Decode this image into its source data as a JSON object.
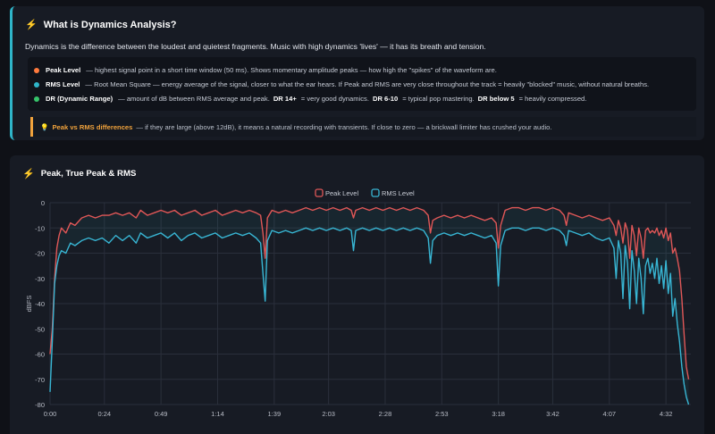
{
  "info": {
    "title": "What is Dynamics Analysis?",
    "intro": "Dynamics is the difference between the loudest and quietest fragments. Music with high dynamics 'lives' — it has its breath and tension.",
    "peak_term": "Peak Level",
    "peak_desc": "— highest signal point in a short time window (50 ms). Shows momentary amplitude peaks — how high the \"spikes\" of the waveform are.",
    "rms_term": "RMS Level",
    "rms_desc": "— Root Mean Square — energy average of the signal, closer to what the ear hears. If Peak and RMS are very close throughout the track = heavily \"blocked\" music, without natural breaths.",
    "dr_term": "DR (Dynamic Range)",
    "dr_desc": "— amount of dB between RMS average and peak.",
    "dr_a": "DR 14+",
    "dr_a_desc": "= very good dynamics.",
    "dr_b": "DR 6-10",
    "dr_b_desc": "= typical pop mastering.",
    "dr_c": "DR below 5",
    "dr_c_desc": "= heavily compressed.",
    "tip_label": "Peak vs RMS differences",
    "tip_text": "— if they are large (above 12dB), it means a natural recording with transients. If close to zero — a brickwall limiter has crushed your audio.",
    "colors": {
      "peak_dot": "#ff7a3d",
      "rms_dot": "#2fb5c9",
      "dr_dot": "#36c46a",
      "accent": "#2fb5c9",
      "tip": "#f0a23c"
    }
  },
  "chart_title": "Peak, True Peak & RMS",
  "chart_data": {
    "type": "line",
    "ylabel": "dBFS",
    "ylim": [
      -80,
      0
    ],
    "yticks": [
      0,
      -10,
      -20,
      -30,
      -40,
      -50,
      -60,
      -70,
      -80
    ],
    "xlim": [
      0,
      283
    ],
    "xticks": [
      {
        "t": 0,
        "label": "0:00"
      },
      {
        "t": 24,
        "label": "0:24"
      },
      {
        "t": 49,
        "label": "0:49"
      },
      {
        "t": 74,
        "label": "1:14"
      },
      {
        "t": 99,
        "label": "1:39"
      },
      {
        "t": 123,
        "label": "2:03"
      },
      {
        "t": 148,
        "label": "2:28"
      },
      {
        "t": 173,
        "label": "2:53"
      },
      {
        "t": 198,
        "label": "3:18"
      },
      {
        "t": 222,
        "label": "3:42"
      },
      {
        "t": 247,
        "label": "4:07"
      },
      {
        "t": 272,
        "label": "4:32"
      }
    ],
    "legend_position": "top-center",
    "grid": true,
    "series": [
      {
        "name": "Peak Level",
        "color": "#e05757",
        "points": [
          [
            0,
            -60
          ],
          [
            1,
            -50
          ],
          [
            2,
            -30
          ],
          [
            3,
            -18
          ],
          [
            4,
            -13
          ],
          [
            5,
            -10
          ],
          [
            7,
            -12
          ],
          [
            9,
            -8
          ],
          [
            11,
            -9
          ],
          [
            14,
            -6
          ],
          [
            17,
            -5
          ],
          [
            20,
            -6
          ],
          [
            23,
            -5
          ],
          [
            26,
            -5
          ],
          [
            29,
            -4
          ],
          [
            32,
            -5
          ],
          [
            35,
            -4
          ],
          [
            38,
            -6
          ],
          [
            40,
            -3
          ],
          [
            43,
            -5
          ],
          [
            46,
            -4
          ],
          [
            49,
            -3
          ],
          [
            52,
            -4
          ],
          [
            55,
            -3
          ],
          [
            58,
            -5
          ],
          [
            61,
            -4
          ],
          [
            64,
            -3
          ],
          [
            67,
            -5
          ],
          [
            70,
            -4
          ],
          [
            73,
            -3
          ],
          [
            76,
            -5
          ],
          [
            79,
            -4
          ],
          [
            82,
            -3
          ],
          [
            85,
            -4
          ],
          [
            88,
            -3
          ],
          [
            91,
            -4
          ],
          [
            93,
            -5
          ],
          [
            94,
            -12
          ],
          [
            95,
            -22
          ],
          [
            96,
            -6
          ],
          [
            98,
            -3
          ],
          [
            101,
            -4
          ],
          [
            104,
            -3
          ],
          [
            107,
            -4
          ],
          [
            110,
            -3
          ],
          [
            113,
            -2
          ],
          [
            116,
            -3
          ],
          [
            119,
            -2
          ],
          [
            122,
            -3
          ],
          [
            125,
            -2
          ],
          [
            128,
            -3
          ],
          [
            131,
            -2
          ],
          [
            133,
            -3
          ],
          [
            134,
            -6
          ],
          [
            135,
            -3
          ],
          [
            138,
            -2
          ],
          [
            141,
            -3
          ],
          [
            144,
            -2
          ],
          [
            147,
            -3
          ],
          [
            150,
            -2
          ],
          [
            153,
            -3
          ],
          [
            156,
            -2
          ],
          [
            159,
            -3
          ],
          [
            162,
            -2
          ],
          [
            165,
            -3
          ],
          [
            167,
            -5
          ],
          [
            168,
            -12
          ],
          [
            169,
            -7
          ],
          [
            171,
            -6
          ],
          [
            174,
            -5
          ],
          [
            177,
            -6
          ],
          [
            180,
            -5
          ],
          [
            183,
            -6
          ],
          [
            186,
            -5
          ],
          [
            189,
            -6
          ],
          [
            192,
            -7
          ],
          [
            195,
            -6
          ],
          [
            197,
            -8
          ],
          [
            198,
            -18
          ],
          [
            199,
            -9
          ],
          [
            201,
            -3
          ],
          [
            204,
            -2
          ],
          [
            207,
            -2
          ],
          [
            210,
            -3
          ],
          [
            213,
            -2
          ],
          [
            216,
            -2
          ],
          [
            219,
            -3
          ],
          [
            222,
            -2
          ],
          [
            225,
            -3
          ],
          [
            227,
            -5
          ],
          [
            228,
            -9
          ],
          [
            229,
            -4
          ],
          [
            232,
            -5
          ],
          [
            235,
            -6
          ],
          [
            238,
            -5
          ],
          [
            241,
            -6
          ],
          [
            244,
            -7
          ],
          [
            247,
            -6
          ],
          [
            249,
            -9
          ],
          [
            250,
            -13
          ],
          [
            251,
            -7
          ],
          [
            252,
            -10
          ],
          [
            253,
            -16
          ],
          [
            254,
            -8
          ],
          [
            255,
            -11
          ],
          [
            256,
            -22
          ],
          [
            257,
            -9
          ],
          [
            258,
            -13
          ],
          [
            259,
            -21
          ],
          [
            260,
            -10
          ],
          [
            261,
            -14
          ],
          [
            262,
            -22
          ],
          [
            263,
            -11
          ],
          [
            264,
            -10
          ],
          [
            265,
            -12
          ],
          [
            266,
            -11
          ],
          [
            267,
            -12
          ],
          [
            268,
            -10
          ],
          [
            269,
            -13
          ],
          [
            270,
            -11
          ],
          [
            271,
            -14
          ],
          [
            272,
            -10
          ],
          [
            273,
            -15
          ],
          [
            274,
            -12
          ],
          [
            275,
            -20
          ],
          [
            276,
            -18
          ],
          [
            277,
            -22
          ],
          [
            278,
            -27
          ],
          [
            279,
            -38
          ],
          [
            280,
            -52
          ],
          [
            281,
            -65
          ],
          [
            282,
            -70
          ]
        ]
      },
      {
        "name": "RMS Level",
        "color": "#38b6d4",
        "points": [
          [
            0,
            -75
          ],
          [
            1,
            -55
          ],
          [
            2,
            -32
          ],
          [
            3,
            -25
          ],
          [
            4,
            -21
          ],
          [
            5,
            -19
          ],
          [
            7,
            -20
          ],
          [
            9,
            -16
          ],
          [
            11,
            -17
          ],
          [
            14,
            -15
          ],
          [
            17,
            -14
          ],
          [
            20,
            -15
          ],
          [
            23,
            -14
          ],
          [
            26,
            -16
          ],
          [
            29,
            -13
          ],
          [
            32,
            -15
          ],
          [
            35,
            -13
          ],
          [
            38,
            -16
          ],
          [
            40,
            -12
          ],
          [
            43,
            -14
          ],
          [
            46,
            -13
          ],
          [
            49,
            -12
          ],
          [
            52,
            -14
          ],
          [
            55,
            -12
          ],
          [
            58,
            -15
          ],
          [
            61,
            -13
          ],
          [
            64,
            -12
          ],
          [
            67,
            -14
          ],
          [
            70,
            -13
          ],
          [
            73,
            -12
          ],
          [
            76,
            -14
          ],
          [
            79,
            -13
          ],
          [
            82,
            -12
          ],
          [
            85,
            -13
          ],
          [
            88,
            -12
          ],
          [
            91,
            -14
          ],
          [
            93,
            -16
          ],
          [
            94,
            -28
          ],
          [
            95,
            -39
          ],
          [
            96,
            -15
          ],
          [
            98,
            -11
          ],
          [
            101,
            -12
          ],
          [
            104,
            -11
          ],
          [
            107,
            -12
          ],
          [
            110,
            -11
          ],
          [
            113,
            -10
          ],
          [
            116,
            -11
          ],
          [
            119,
            -10
          ],
          [
            122,
            -11
          ],
          [
            125,
            -10
          ],
          [
            128,
            -11
          ],
          [
            131,
            -10
          ],
          [
            133,
            -11
          ],
          [
            134,
            -19
          ],
          [
            135,
            -11
          ],
          [
            138,
            -10
          ],
          [
            141,
            -11
          ],
          [
            144,
            -10
          ],
          [
            147,
            -11
          ],
          [
            150,
            -10
          ],
          [
            153,
            -11
          ],
          [
            156,
            -10
          ],
          [
            159,
            -11
          ],
          [
            162,
            -10
          ],
          [
            165,
            -11
          ],
          [
            167,
            -14
          ],
          [
            168,
            -24
          ],
          [
            169,
            -15
          ],
          [
            171,
            -13
          ],
          [
            174,
            -12
          ],
          [
            177,
            -13
          ],
          [
            180,
            -12
          ],
          [
            183,
            -13
          ],
          [
            186,
            -12
          ],
          [
            189,
            -13
          ],
          [
            192,
            -14
          ],
          [
            195,
            -13
          ],
          [
            197,
            -16
          ],
          [
            198,
            -33
          ],
          [
            199,
            -17
          ],
          [
            201,
            -11
          ],
          [
            204,
            -10
          ],
          [
            207,
            -10
          ],
          [
            210,
            -11
          ],
          [
            213,
            -10
          ],
          [
            216,
            -10
          ],
          [
            219,
            -11
          ],
          [
            222,
            -10
          ],
          [
            225,
            -11
          ],
          [
            227,
            -13
          ],
          [
            228,
            -17
          ],
          [
            229,
            -11
          ],
          [
            232,
            -12
          ],
          [
            235,
            -13
          ],
          [
            238,
            -12
          ],
          [
            241,
            -14
          ],
          [
            244,
            -15
          ],
          [
            247,
            -14
          ],
          [
            249,
            -18
          ],
          [
            250,
            -30
          ],
          [
            251,
            -15
          ],
          [
            252,
            -20
          ],
          [
            253,
            -38
          ],
          [
            254,
            -17
          ],
          [
            255,
            -24
          ],
          [
            256,
            -42
          ],
          [
            257,
            -19
          ],
          [
            258,
            -27
          ],
          [
            259,
            -40
          ],
          [
            260,
            -22
          ],
          [
            261,
            -30
          ],
          [
            262,
            -44
          ],
          [
            263,
            -25
          ],
          [
            264,
            -22
          ],
          [
            265,
            -28
          ],
          [
            266,
            -24
          ],
          [
            267,
            -30
          ],
          [
            268,
            -22
          ],
          [
            269,
            -32
          ],
          [
            270,
            -25
          ],
          [
            271,
            -34
          ],
          [
            272,
            -23
          ],
          [
            273,
            -36
          ],
          [
            274,
            -28
          ],
          [
            275,
            -45
          ],
          [
            276,
            -38
          ],
          [
            277,
            -48
          ],
          [
            278,
            -55
          ],
          [
            279,
            -65
          ],
          [
            280,
            -72
          ],
          [
            281,
            -77
          ],
          [
            282,
            -80
          ]
        ]
      }
    ]
  }
}
